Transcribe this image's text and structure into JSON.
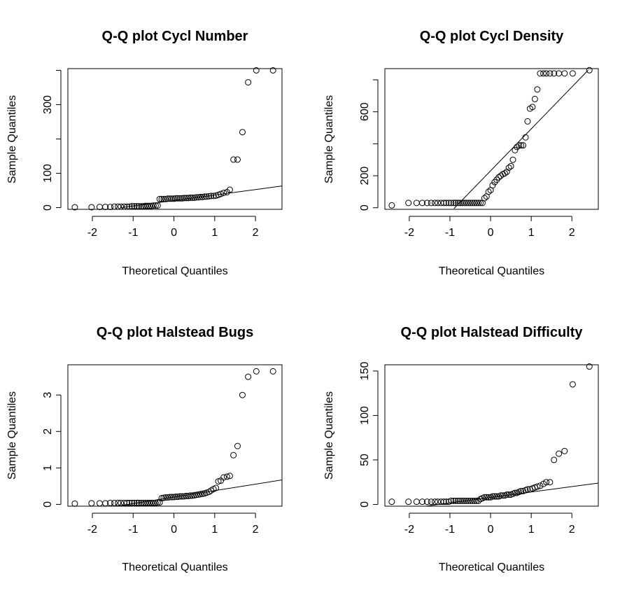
{
  "chart_data": [
    {
      "type": "scatter",
      "title": "Q-Q plot  Cycl  Number",
      "xlabel": "Theoretical Quantiles",
      "ylabel": "Sample Quantiles",
      "xlim": [
        -2.6,
        2.65
      ],
      "ylim": [
        -5,
        405
      ],
      "xticks": [
        -2,
        -1,
        0,
        1,
        2
      ],
      "yticks": [
        0,
        100,
        300
      ],
      "y_minor_ticks": [
        200,
        400
      ],
      "ref_line": {
        "x1": -1.3,
        "y1": 0,
        "x2": 2.65,
        "y2": 63
      },
      "x": [
        -2.43,
        -2.02,
        -1.82,
        -1.68,
        -1.56,
        -1.46,
        -1.37,
        -1.3,
        -1.22,
        -1.15,
        -1.09,
        -1.03,
        -0.97,
        -0.91,
        -0.86,
        -0.8,
        -0.75,
        -0.7,
        -0.65,
        -0.6,
        -0.55,
        -0.5,
        -0.45,
        -0.4,
        -0.35,
        -0.3,
        -0.25,
        -0.2,
        -0.15,
        -0.1,
        -0.05,
        0.0,
        0.05,
        0.1,
        0.15,
        0.2,
        0.25,
        0.3,
        0.35,
        0.4,
        0.45,
        0.5,
        0.55,
        0.6,
        0.65,
        0.7,
        0.75,
        0.8,
        0.86,
        0.91,
        0.97,
        1.03,
        1.09,
        1.15,
        1.22,
        1.3,
        1.37,
        1.46,
        1.56,
        1.68,
        1.82,
        2.02,
        2.43
      ],
      "y": [
        1,
        1,
        2,
        2,
        2,
        3,
        3,
        3,
        3,
        3,
        3,
        4,
        4,
        4,
        4,
        4,
        4,
        5,
        5,
        5,
        5,
        6,
        6,
        6,
        25,
        25,
        25,
        25,
        26,
        26,
        26,
        26,
        27,
        27,
        27,
        27,
        28,
        28,
        28,
        29,
        29,
        29,
        30,
        30,
        31,
        31,
        32,
        32,
        33,
        34,
        34,
        35,
        37,
        40,
        43,
        45,
        52,
        140,
        140,
        220,
        365,
        400,
        400
      ]
    },
    {
      "type": "scatter",
      "title": "Q-Q plot  Cycl  Density",
      "xlabel": "Theoretical Quantiles",
      "ylabel": "Sample Quantiles",
      "xlim": [
        -2.6,
        2.65
      ],
      "ylim": [
        -10,
        870
      ],
      "xticks": [
        -2,
        -1,
        0,
        1,
        2
      ],
      "yticks": [
        0,
        200,
        600
      ],
      "y_minor_ticks": [
        400,
        800
      ],
      "ref_line": {
        "x1": -0.9,
        "y1": -5,
        "x2": 2.4,
        "y2": 860
      },
      "x": [
        -2.43,
        -2.02,
        -1.82,
        -1.68,
        -1.56,
        -1.46,
        -1.37,
        -1.3,
        -1.22,
        -1.15,
        -1.09,
        -1.03,
        -0.97,
        -0.91,
        -0.86,
        -0.8,
        -0.75,
        -0.7,
        -0.65,
        -0.6,
        -0.55,
        -0.5,
        -0.45,
        -0.4,
        -0.35,
        -0.3,
        -0.25,
        -0.2,
        -0.15,
        -0.1,
        -0.05,
        0.0,
        0.05,
        0.1,
        0.15,
        0.2,
        0.25,
        0.3,
        0.35,
        0.4,
        0.45,
        0.5,
        0.55,
        0.6,
        0.65,
        0.7,
        0.75,
        0.8,
        0.86,
        0.91,
        0.97,
        1.03,
        1.09,
        1.15,
        1.22,
        1.3,
        1.37,
        1.46,
        1.56,
        1.68,
        1.82,
        2.02,
        2.43
      ],
      "y": [
        15,
        30,
        30,
        30,
        30,
        30,
        30,
        30,
        30,
        30,
        30,
        30,
        30,
        30,
        30,
        30,
        30,
        30,
        30,
        30,
        30,
        30,
        30,
        30,
        30,
        30,
        30,
        30,
        60,
        70,
        100,
        110,
        140,
        160,
        175,
        190,
        200,
        210,
        215,
        225,
        250,
        260,
        300,
        360,
        380,
        390,
        390,
        390,
        440,
        540,
        620,
        630,
        680,
        740,
        840,
        840,
        840,
        840,
        840,
        840,
        840,
        840,
        860
      ]
    },
    {
      "type": "scatter",
      "title": "Q-Q plot  Halstead Bugs",
      "xlabel": "Theoretical Quantiles",
      "ylabel": "Sample Quantiles",
      "xlim": [
        -2.6,
        2.65
      ],
      "ylim": [
        -0.05,
        3.83
      ],
      "xticks": [
        -2,
        -1,
        0,
        1,
        2
      ],
      "yticks": [
        0,
        1,
        2,
        3
      ],
      "y_minor_ticks": [],
      "ref_line": {
        "x1": -1.4,
        "y1": -0.05,
        "x2": 2.65,
        "y2": 0.67
      },
      "x": [
        -2.43,
        -2.02,
        -1.82,
        -1.68,
        -1.56,
        -1.46,
        -1.37,
        -1.3,
        -1.22,
        -1.15,
        -1.09,
        -1.03,
        -0.97,
        -0.91,
        -0.86,
        -0.8,
        -0.75,
        -0.7,
        -0.65,
        -0.6,
        -0.55,
        -0.5,
        -0.45,
        -0.4,
        -0.35,
        -0.3,
        -0.25,
        -0.2,
        -0.15,
        -0.1,
        -0.05,
        0.0,
        0.05,
        0.1,
        0.15,
        0.2,
        0.25,
        0.3,
        0.35,
        0.4,
        0.45,
        0.5,
        0.55,
        0.6,
        0.65,
        0.7,
        0.75,
        0.8,
        0.86,
        0.91,
        0.97,
        1.03,
        1.09,
        1.15,
        1.22,
        1.3,
        1.37,
        1.46,
        1.56,
        1.68,
        1.82,
        2.02,
        2.43
      ],
      "y": [
        0.02,
        0.03,
        0.03,
        0.03,
        0.04,
        0.04,
        0.04,
        0.04,
        0.04,
        0.04,
        0.04,
        0.04,
        0.04,
        0.04,
        0.04,
        0.04,
        0.04,
        0.04,
        0.04,
        0.04,
        0.04,
        0.04,
        0.04,
        0.05,
        0.05,
        0.17,
        0.18,
        0.19,
        0.19,
        0.2,
        0.2,
        0.2,
        0.21,
        0.21,
        0.22,
        0.22,
        0.22,
        0.23,
        0.23,
        0.24,
        0.24,
        0.25,
        0.26,
        0.27,
        0.28,
        0.29,
        0.3,
        0.32,
        0.34,
        0.38,
        0.42,
        0.45,
        0.63,
        0.65,
        0.74,
        0.76,
        0.78,
        1.35,
        1.6,
        3.0,
        3.5,
        3.65,
        3.65
      ]
    },
    {
      "type": "scatter",
      "title": "Q-Q plot  Halstead Difficulty",
      "xlabel": "Theoretical Quantiles",
      "ylabel": "Sample Quantiles",
      "xlim": [
        -2.6,
        2.65
      ],
      "ylim": [
        -2,
        157
      ],
      "xticks": [
        -2,
        -1,
        0,
        1,
        2
      ],
      "yticks": [
        0,
        50,
        100,
        150
      ],
      "y_minor_ticks": [],
      "ref_line": {
        "x1": -1.6,
        "y1": -2,
        "x2": 2.65,
        "y2": 24
      },
      "x": [
        -2.43,
        -2.02,
        -1.82,
        -1.68,
        -1.56,
        -1.46,
        -1.37,
        -1.3,
        -1.22,
        -1.15,
        -1.09,
        -1.03,
        -0.97,
        -0.91,
        -0.86,
        -0.8,
        -0.75,
        -0.7,
        -0.65,
        -0.6,
        -0.55,
        -0.5,
        -0.45,
        -0.4,
        -0.35,
        -0.3,
        -0.25,
        -0.2,
        -0.15,
        -0.1,
        -0.05,
        0.0,
        0.05,
        0.1,
        0.15,
        0.2,
        0.25,
        0.3,
        0.35,
        0.4,
        0.45,
        0.5,
        0.55,
        0.6,
        0.65,
        0.7,
        0.75,
        0.8,
        0.86,
        0.91,
        0.97,
        1.03,
        1.09,
        1.15,
        1.22,
        1.3,
        1.37,
        1.46,
        1.56,
        1.68,
        1.82,
        2.02,
        2.43
      ],
      "y": [
        3,
        3,
        3,
        3,
        3,
        3,
        3,
        3,
        3,
        3,
        3,
        3,
        4,
        4,
        4,
        4,
        4,
        4,
        4,
        4,
        4,
        4,
        4,
        4,
        4,
        4,
        6,
        7,
        8,
        8,
        8,
        8,
        9,
        9,
        9,
        9,
        10,
        10,
        10,
        11,
        11,
        11,
        12,
        13,
        13,
        14,
        15,
        15,
        16,
        17,
        17,
        18,
        19,
        20,
        21,
        23,
        25,
        25,
        50,
        57,
        60,
        135,
        155
      ]
    }
  ]
}
